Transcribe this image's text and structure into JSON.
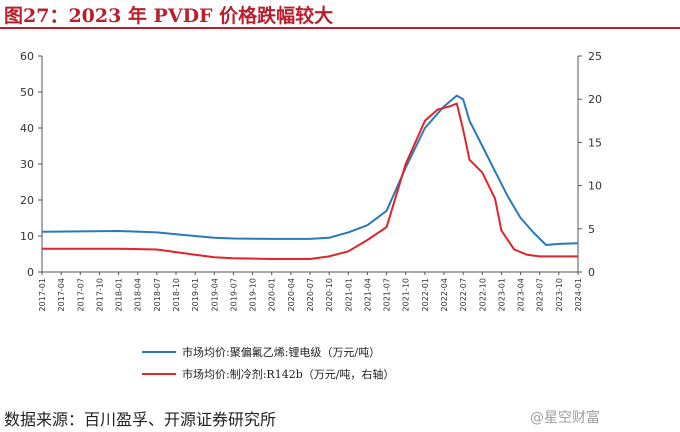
{
  "title": "图27：2023 年 PVDF 价格跌幅较大",
  "source": "数据来源：百川盈孚、开源证券研究所",
  "watermark": "@星空财富",
  "colors": {
    "blue": "#2a7ab8",
    "red": "#e0242b",
    "title": "#b8202e"
  },
  "chart_data": {
    "type": "line",
    "grid": false,
    "legend_position": "bottom-center",
    "ylim_left": [
      0,
      60
    ],
    "yticks_left": [
      0,
      10,
      20,
      30,
      40,
      50,
      60
    ],
    "ylim_right": [
      0,
      25
    ],
    "yticks_right": [
      0,
      5,
      10,
      15,
      20,
      25
    ],
    "x_tick_labels": [
      "2017-01",
      "2017-04",
      "2017-07",
      "2017-10",
      "2018-01",
      "2018-04",
      "2018-07",
      "2018-10",
      "2019-01",
      "2019-04",
      "2019-07",
      "2019-10",
      "2020-01",
      "2020-04",
      "2020-07",
      "2020-10",
      "2021-01",
      "2021-04",
      "2021-07",
      "2021-10",
      "2022-01",
      "2022-04",
      "2022-07",
      "2022-10",
      "2023-01",
      "2023-04",
      "2023-07",
      "2023-10",
      "2024-01"
    ],
    "series": [
      {
        "name": "市场均价:聚偏氟乙烯:锂电级（万元/吨）",
        "axis": "left",
        "color": "#2a7ab8",
        "x": [
          "2017-01",
          "2018-01",
          "2018-07",
          "2018-10",
          "2019-01",
          "2019-04",
          "2019-07",
          "2020-01",
          "2020-07",
          "2020-10",
          "2021-01",
          "2021-04",
          "2021-07",
          "2021-10",
          "2022-01",
          "2022-04",
          "2022-06",
          "2022-07",
          "2022-08",
          "2022-10",
          "2022-12",
          "2023-02",
          "2023-04",
          "2023-06",
          "2023-08",
          "2023-10",
          "2024-01"
        ],
        "values": [
          11.2,
          11.4,
          11.0,
          10.5,
          10.0,
          9.5,
          9.3,
          9.2,
          9.2,
          9.5,
          11,
          13,
          17,
          29,
          40,
          46,
          49,
          48,
          42,
          35,
          28,
          21,
          15,
          11,
          7.5,
          7.8,
          8.0
        ]
      },
      {
        "name": "市场均价:制冷剂:R142b（万元/吨，右轴）",
        "axis": "right",
        "color": "#e0242b",
        "x": [
          "2017-01",
          "2018-01",
          "2018-07",
          "2018-10",
          "2019-01",
          "2019-04",
          "2019-07",
          "2020-01",
          "2020-07",
          "2020-10",
          "2021-01",
          "2021-04",
          "2021-07",
          "2021-10",
          "2022-01",
          "2022-03",
          "2022-05",
          "2022-06",
          "2022-07",
          "2022-08",
          "2022-10",
          "2022-12",
          "2023-01",
          "2023-03",
          "2023-05",
          "2023-07",
          "2023-10",
          "2024-01"
        ],
        "values": [
          2.7,
          2.7,
          2.6,
          2.3,
          2.0,
          1.7,
          1.6,
          1.5,
          1.5,
          1.8,
          2.4,
          3.7,
          5.2,
          12.5,
          17.5,
          18.8,
          19.2,
          19.5,
          16.5,
          13.0,
          11.5,
          8.5,
          4.8,
          2.6,
          2.0,
          1.8,
          1.8,
          1.8
        ]
      }
    ]
  }
}
